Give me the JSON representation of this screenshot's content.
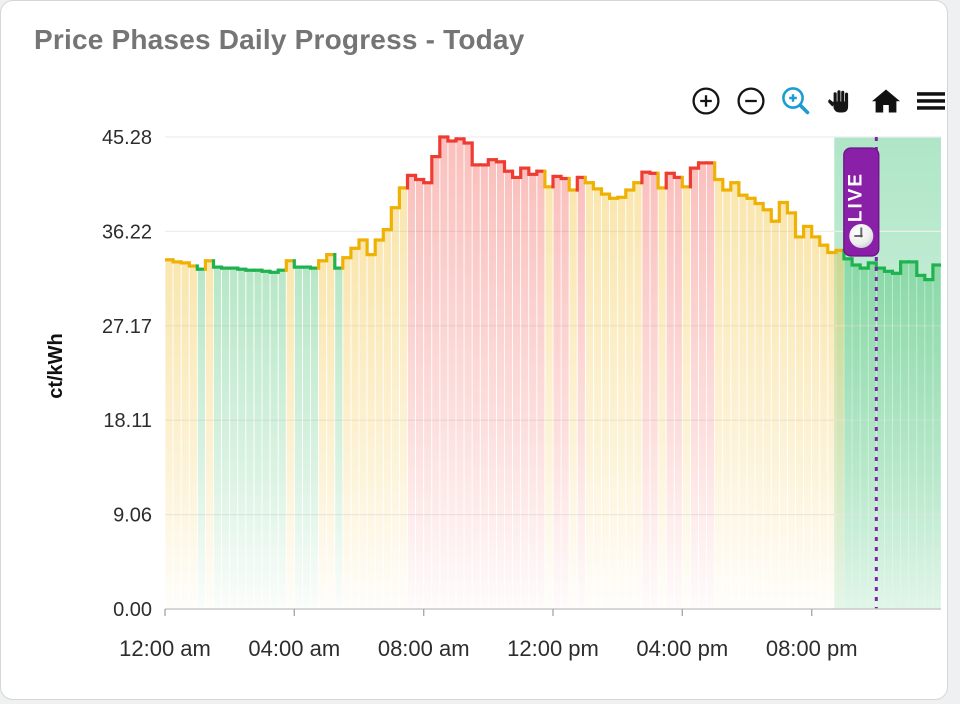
{
  "title": "Price Phases Daily Progress - Today",
  "toolbar": {
    "buttons": [
      {
        "icon": "zoom-in-icon"
      },
      {
        "icon": "zoom-out-icon"
      },
      {
        "icon": "box-zoom-icon"
      },
      {
        "icon": "pan-icon"
      },
      {
        "icon": "home-icon"
      },
      {
        "icon": "menu-icon"
      }
    ],
    "box_zoom_color": "#1d9cd3",
    "icon_color": "#151515"
  },
  "chart_data": {
    "type": "area",
    "subtype": "step-area-by-phase",
    "title": "Price Phases Daily Progress - Today",
    "xlabel": "",
    "ylabel": "ct/kWh",
    "ylim": [
      0,
      45.28
    ],
    "xlim_hours": [
      0,
      24
    ],
    "grid": "horizontal",
    "y_ticks": [
      {
        "value": 45.28,
        "label": "45.28"
      },
      {
        "value": 36.22,
        "label": "36.22"
      },
      {
        "value": 27.17,
        "label": "27.17"
      },
      {
        "value": 18.11,
        "label": "18.11"
      },
      {
        "value": 9.06,
        "label": "9.06"
      },
      {
        "value": 0.0,
        "label": "0.00"
      }
    ],
    "x_ticks": [
      {
        "hour": 0,
        "label": "12:00 am"
      },
      {
        "hour": 4,
        "label": "04:00 am"
      },
      {
        "hour": 8,
        "label": "08:00 am"
      },
      {
        "hour": 12,
        "label": "12:00 pm"
      },
      {
        "hour": 16,
        "label": "04:00 pm"
      },
      {
        "hour": 20,
        "label": "08:00 pm"
      }
    ],
    "interval_hours": 0.25,
    "start_hour": 0,
    "phase_colors": {
      "g": "#1fb350",
      "y": "#efb104",
      "r": "#ee3c32"
    },
    "live_region": {
      "start_hour": 20.7,
      "end_hour": 24,
      "color": "#4ec882"
    },
    "now_line": {
      "hour": 22.0,
      "color": "#7e22a8",
      "style": "dashed"
    },
    "live_badge": {
      "label": "LIVE",
      "fill": "#8a1fa8",
      "border": "#6c1585",
      "icon": "clock-icon"
    },
    "points": [
      [
        33.5,
        "y"
      ],
      [
        33.3,
        "y"
      ],
      [
        33.2,
        "y"
      ],
      [
        32.9,
        "y"
      ],
      [
        32.6,
        "g"
      ],
      [
        33.4,
        "y"
      ],
      [
        32.8,
        "g"
      ],
      [
        32.7,
        "g"
      ],
      [
        32.7,
        "g"
      ],
      [
        32.6,
        "g"
      ],
      [
        32.5,
        "g"
      ],
      [
        32.5,
        "g"
      ],
      [
        32.4,
        "g"
      ],
      [
        32.3,
        "g"
      ],
      [
        32.5,
        "g"
      ],
      [
        33.4,
        "y"
      ],
      [
        32.8,
        "g"
      ],
      [
        32.8,
        "g"
      ],
      [
        32.7,
        "g"
      ],
      [
        33.4,
        "y"
      ],
      [
        34.0,
        "y"
      ],
      [
        32.7,
        "g"
      ],
      [
        33.7,
        "y"
      ],
      [
        34.6,
        "y"
      ],
      [
        35.4,
        "y"
      ],
      [
        34.0,
        "y"
      ],
      [
        35.4,
        "y"
      ],
      [
        36.4,
        "y"
      ],
      [
        38.5,
        "y"
      ],
      [
        40.4,
        "y"
      ],
      [
        41.6,
        "r"
      ],
      [
        41.2,
        "r"
      ],
      [
        40.9,
        "r"
      ],
      [
        43.4,
        "r"
      ],
      [
        45.28,
        "r"
      ],
      [
        44.9,
        "r"
      ],
      [
        45.1,
        "r"
      ],
      [
        44.7,
        "r"
      ],
      [
        42.6,
        "r"
      ],
      [
        42.6,
        "r"
      ],
      [
        43.1,
        "r"
      ],
      [
        42.9,
        "r"
      ],
      [
        42.0,
        "r"
      ],
      [
        41.4,
        "r"
      ],
      [
        42.3,
        "r"
      ],
      [
        41.7,
        "r"
      ],
      [
        42.0,
        "r"
      ],
      [
        40.5,
        "y"
      ],
      [
        41.5,
        "r"
      ],
      [
        41.3,
        "r"
      ],
      [
        40.2,
        "y"
      ],
      [
        41.4,
        "r"
      ],
      [
        40.9,
        "y"
      ],
      [
        40.3,
        "y"
      ],
      [
        39.8,
        "y"
      ],
      [
        39.4,
        "y"
      ],
      [
        39.5,
        "y"
      ],
      [
        40.2,
        "y"
      ],
      [
        40.9,
        "y"
      ],
      [
        41.9,
        "r"
      ],
      [
        41.8,
        "r"
      ],
      [
        40.4,
        "y"
      ],
      [
        41.8,
        "r"
      ],
      [
        41.4,
        "r"
      ],
      [
        40.5,
        "y"
      ],
      [
        42.3,
        "r"
      ],
      [
        42.8,
        "r"
      ],
      [
        42.8,
        "r"
      ],
      [
        41.2,
        "y"
      ],
      [
        40.2,
        "y"
      ],
      [
        40.9,
        "y"
      ],
      [
        39.7,
        "y"
      ],
      [
        39.4,
        "y"
      ],
      [
        38.9,
        "y"
      ],
      [
        38.3,
        "y"
      ],
      [
        37.2,
        "y"
      ],
      [
        39.0,
        "y"
      ],
      [
        38.0,
        "y"
      ],
      [
        35.7,
        "y"
      ],
      [
        36.7,
        "y"
      ],
      [
        35.7,
        "y"
      ],
      [
        34.9,
        "y"
      ],
      [
        34.2,
        "y"
      ],
      [
        34.4,
        "y"
      ],
      [
        33.6,
        "g"
      ],
      [
        33.0,
        "g"
      ],
      [
        32.7,
        "g"
      ],
      [
        33.2,
        "g"
      ],
      [
        32.7,
        "g"
      ],
      [
        32.4,
        "g"
      ],
      [
        32.2,
        "g"
      ],
      [
        33.3,
        "g"
      ],
      [
        33.3,
        "g"
      ],
      [
        32.0,
        "g"
      ],
      [
        31.6,
        "g"
      ],
      [
        33.0,
        "g"
      ]
    ]
  }
}
